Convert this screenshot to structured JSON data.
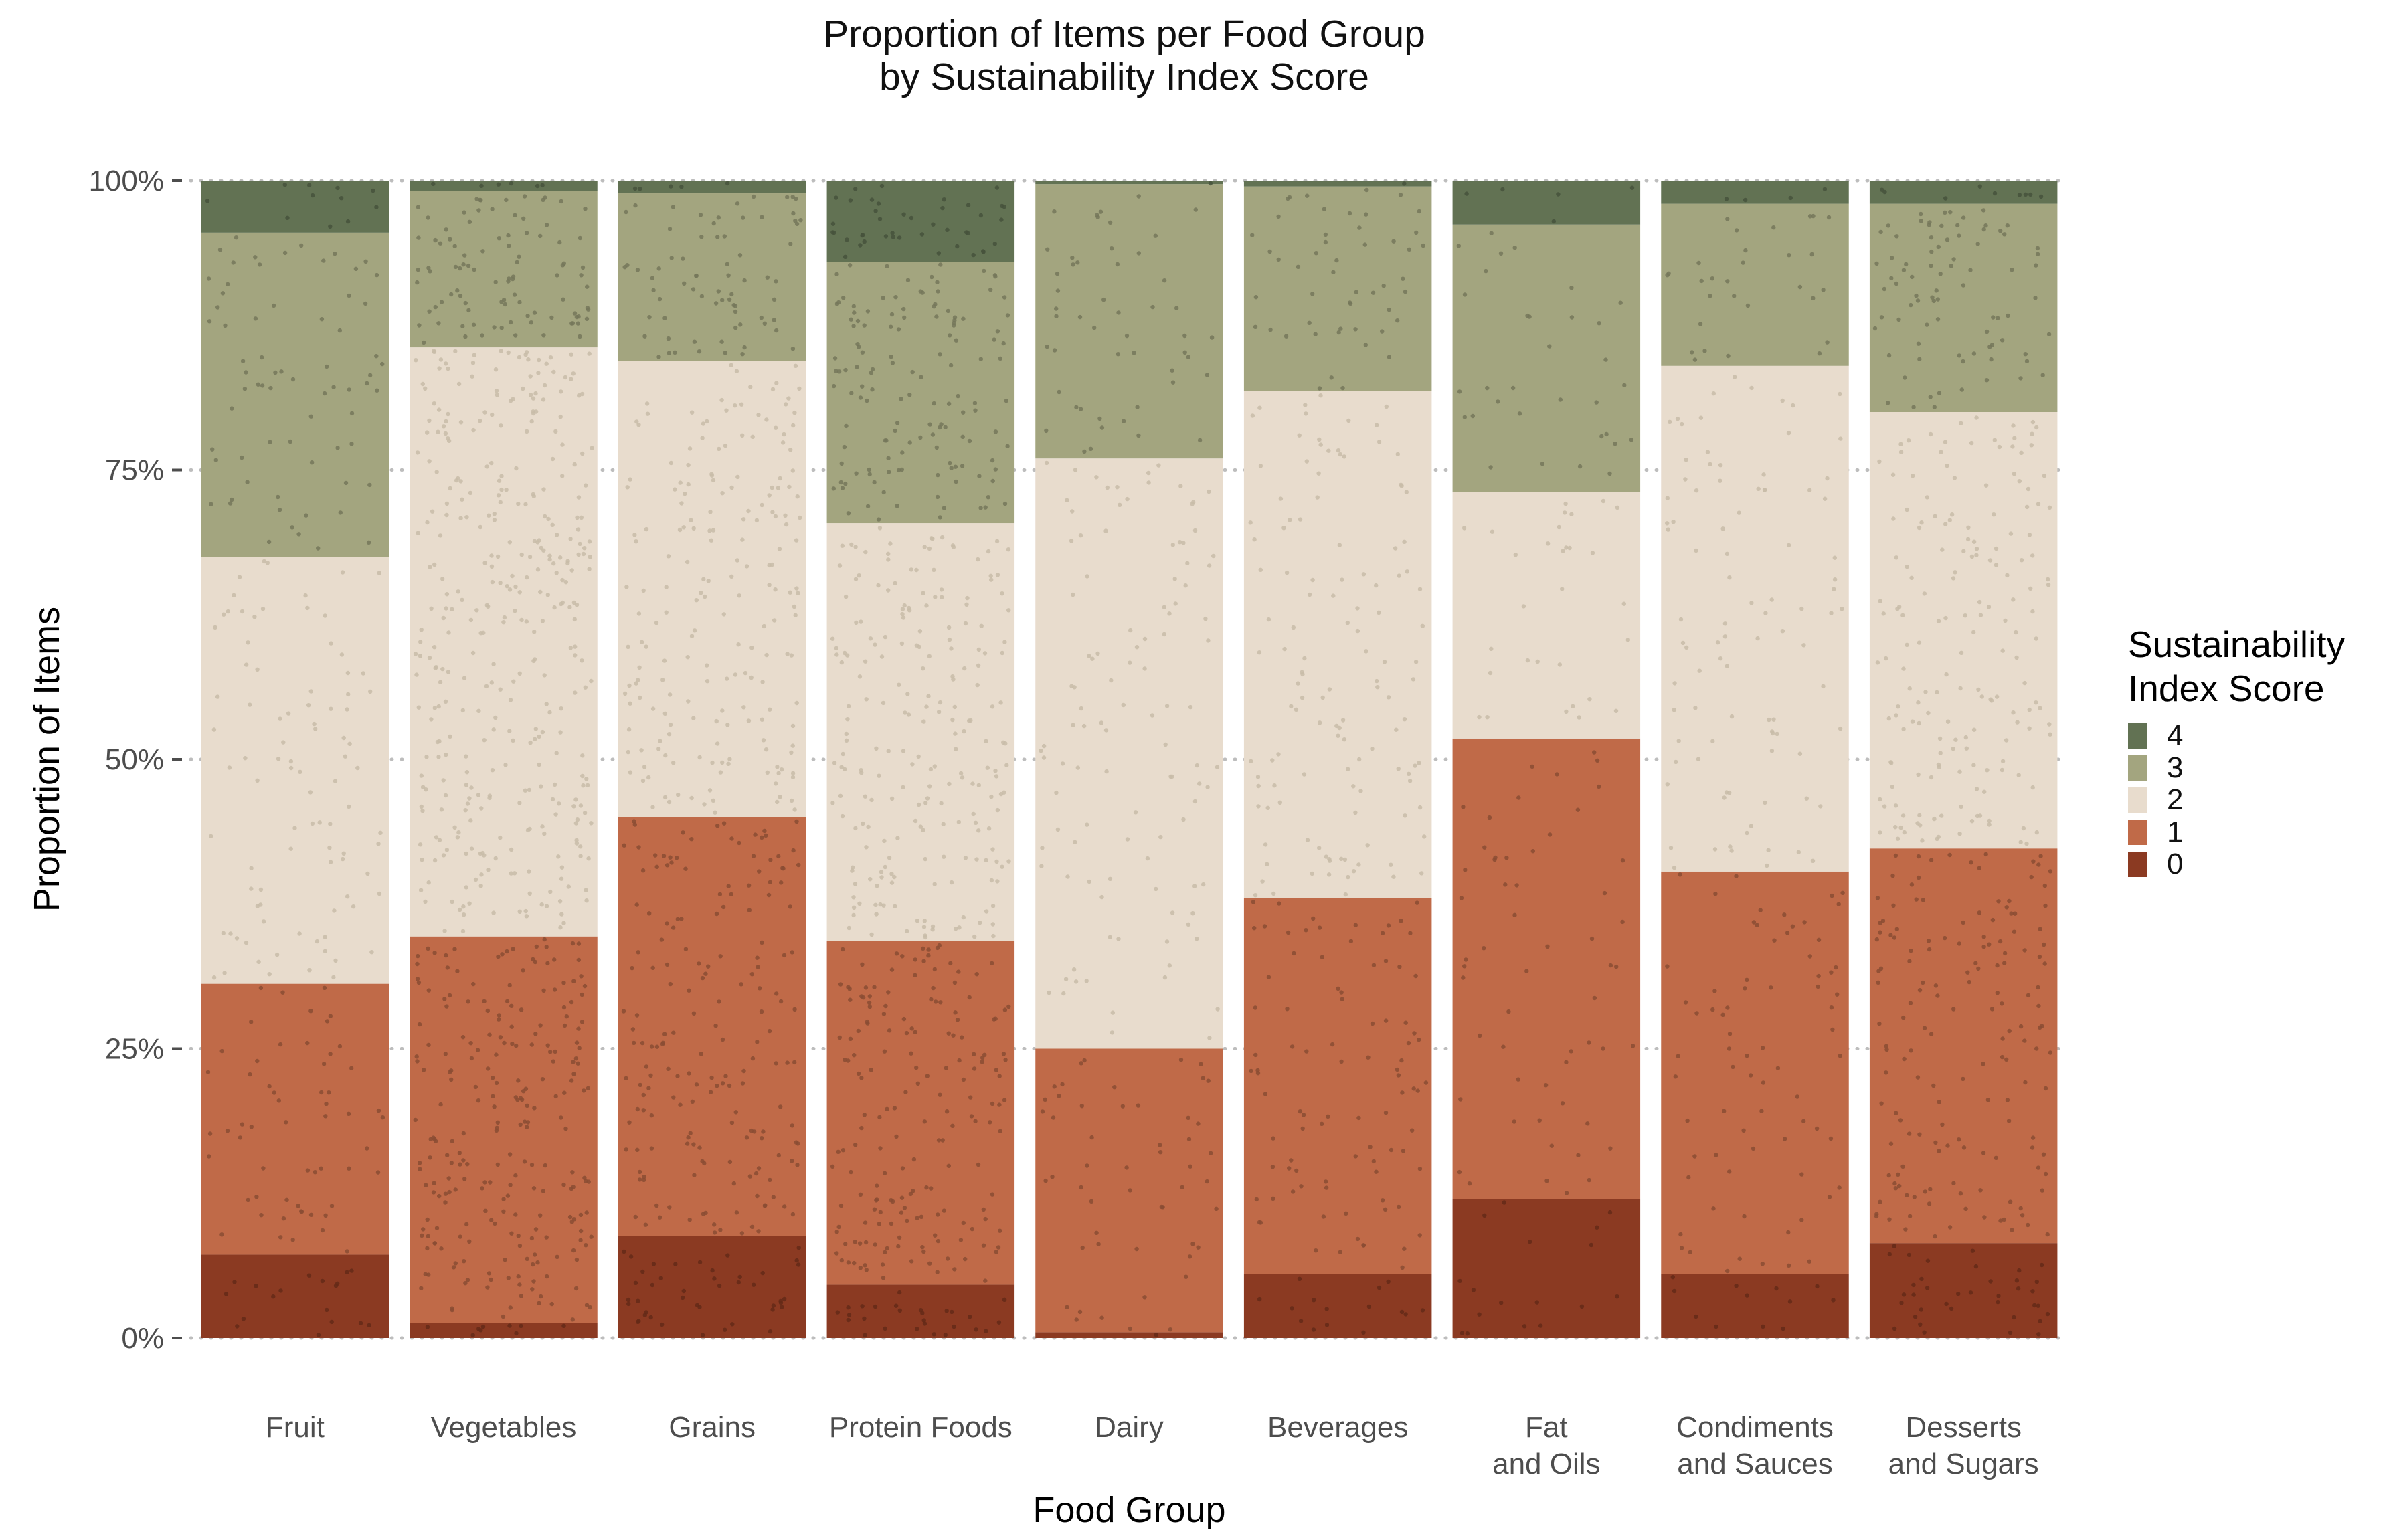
{
  "chart_data": {
    "type": "stacked_bar",
    "title": "Proportion of Items per Food Group",
    "subtitle": "by Sustainability Index Score",
    "xlabel": "Food Group",
    "ylabel": "Proportion of Items",
    "ylim": [
      0,
      1
    ],
    "yticks": [
      {
        "value": 0,
        "label": "0%"
      },
      {
        "value": 0.25,
        "label": "25%"
      },
      {
        "value": 0.5,
        "label": "50%"
      },
      {
        "value": 0.75,
        "label": "75%"
      },
      {
        "value": 1,
        "label": "100%"
      }
    ],
    "categories": [
      {
        "name": "Fruit",
        "label_lines": [
          "Fruit"
        ]
      },
      {
        "name": "Vegetables",
        "label_lines": [
          "Vegetables"
        ]
      },
      {
        "name": "Grains",
        "label_lines": [
          "Grains"
        ]
      },
      {
        "name": "Protein Foods",
        "label_lines": [
          "Protein Foods"
        ]
      },
      {
        "name": "Dairy",
        "label_lines": [
          "Dairy"
        ]
      },
      {
        "name": "Beverages",
        "label_lines": [
          "Beverages"
        ]
      },
      {
        "name": "Fat and Oils",
        "label_lines": [
          "Fat",
          "and Oils"
        ]
      },
      {
        "name": "Condiments and Sauces",
        "label_lines": [
          "Condiments",
          "and Sauces"
        ]
      },
      {
        "name": "Desserts and Sugars",
        "label_lines": [
          "Desserts",
          "and Sugars"
        ]
      }
    ],
    "series": [
      {
        "name": "0",
        "color": "#8b3a22",
        "values": [
          0.072,
          0.013,
          0.088,
          0.046,
          0.005,
          0.055,
          0.12,
          0.055,
          0.082
        ]
      },
      {
        "name": "1",
        "color": "#c06a48",
        "values": [
          0.234,
          0.334,
          0.362,
          0.297,
          0.245,
          0.325,
          0.398,
          0.348,
          0.341
        ]
      },
      {
        "name": "2",
        "color": "#e8dccd",
        "values": [
          0.369,
          0.509,
          0.394,
          0.361,
          0.51,
          0.438,
          0.213,
          0.437,
          0.377
        ]
      },
      {
        "name": "3",
        "color": "#a3a57f",
        "values": [
          0.28,
          0.135,
          0.145,
          0.226,
          0.237,
          0.177,
          0.231,
          0.14,
          0.18
        ]
      },
      {
        "name": "4",
        "color": "#627253",
        "values": [
          0.045,
          0.009,
          0.011,
          0.07,
          0.003,
          0.005,
          0.038,
          0.02,
          0.02
        ]
      }
    ],
    "point_density": [
      0.35,
      1.0,
      0.7,
      0.85,
      0.3,
      0.4,
      0.2,
      0.3,
      0.65
    ],
    "legend": {
      "title_lines": [
        "Sustainability",
        "Index Score"
      ],
      "position": "right",
      "items": [
        {
          "label": "4",
          "color": "#627253"
        },
        {
          "label": "3",
          "color": "#a3a57f"
        },
        {
          "label": "2",
          "color": "#e8dccd"
        },
        {
          "label": "1",
          "color": "#c06a48"
        },
        {
          "label": "0",
          "color": "#8b3a22"
        }
      ]
    }
  }
}
